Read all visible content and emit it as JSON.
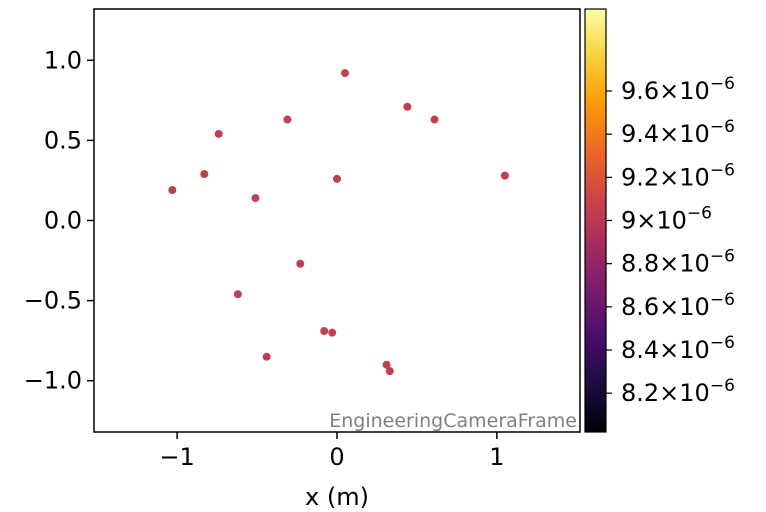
{
  "chart_data": {
    "type": "scatter",
    "xlabel": "x  (m)",
    "ylabel": "",
    "xlim": [
      -1.52,
      1.52
    ],
    "ylim": [
      -1.32,
      1.32
    ],
    "x_ticks": [
      -1,
      0,
      1
    ],
    "x_tick_labels": [
      "−1",
      "0",
      "1"
    ],
    "y_ticks": [
      -1.0,
      -0.5,
      0.0,
      0.5,
      1.0
    ],
    "y_tick_labels": [
      "−1.0",
      "−0.5",
      "0.0",
      "0.5",
      "1.0"
    ],
    "annotation": "EngineeringCameraFrame",
    "grid": false,
    "point_color": "#c13f4f",
    "points": [
      {
        "x": 0.05,
        "y": 0.92
      },
      {
        "x": 0.44,
        "y": 0.71
      },
      {
        "x": 0.61,
        "y": 0.63
      },
      {
        "x": -0.31,
        "y": 0.63
      },
      {
        "x": -0.74,
        "y": 0.54
      },
      {
        "x": -0.83,
        "y": 0.29
      },
      {
        "x": 1.05,
        "y": 0.28
      },
      {
        "x": 0.0,
        "y": 0.26
      },
      {
        "x": -1.03,
        "y": 0.19
      },
      {
        "x": -0.51,
        "y": 0.14
      },
      {
        "x": -0.23,
        "y": -0.27
      },
      {
        "x": -0.62,
        "y": -0.46
      },
      {
        "x": -0.08,
        "y": -0.69
      },
      {
        "x": -0.03,
        "y": -0.7
      },
      {
        "x": -0.44,
        "y": -0.85
      },
      {
        "x": 0.31,
        "y": -0.9
      },
      {
        "x": 0.33,
        "y": -0.94
      }
    ],
    "colorbar": {
      "colormap": "inferno",
      "range": [
        8.02e-06,
        9.98e-06
      ],
      "ticks": [
        {
          "value": 8.2e-06,
          "mantissa": "8.2",
          "exponent": "−6"
        },
        {
          "value": 8.4e-06,
          "mantissa": "8.4",
          "exponent": "−6"
        },
        {
          "value": 8.6e-06,
          "mantissa": "8.6",
          "exponent": "−6"
        },
        {
          "value": 8.8e-06,
          "mantissa": "8.8",
          "exponent": "−6"
        },
        {
          "value": 9e-06,
          "mantissa": "9",
          "exponent": "−6"
        },
        {
          "value": 9.2e-06,
          "mantissa": "9.2",
          "exponent": "−6"
        },
        {
          "value": 9.4e-06,
          "mantissa": "9.4",
          "exponent": "−6"
        },
        {
          "value": 9.6e-06,
          "mantissa": "9.6",
          "exponent": "−6"
        }
      ],
      "colors": [
        "#000004",
        "#1b0c41",
        "#4a0c6b",
        "#781c6d",
        "#a52c60",
        "#cf4446",
        "#ed6925",
        "#fb9b06",
        "#f7d13d",
        "#fcffa4"
      ]
    }
  }
}
